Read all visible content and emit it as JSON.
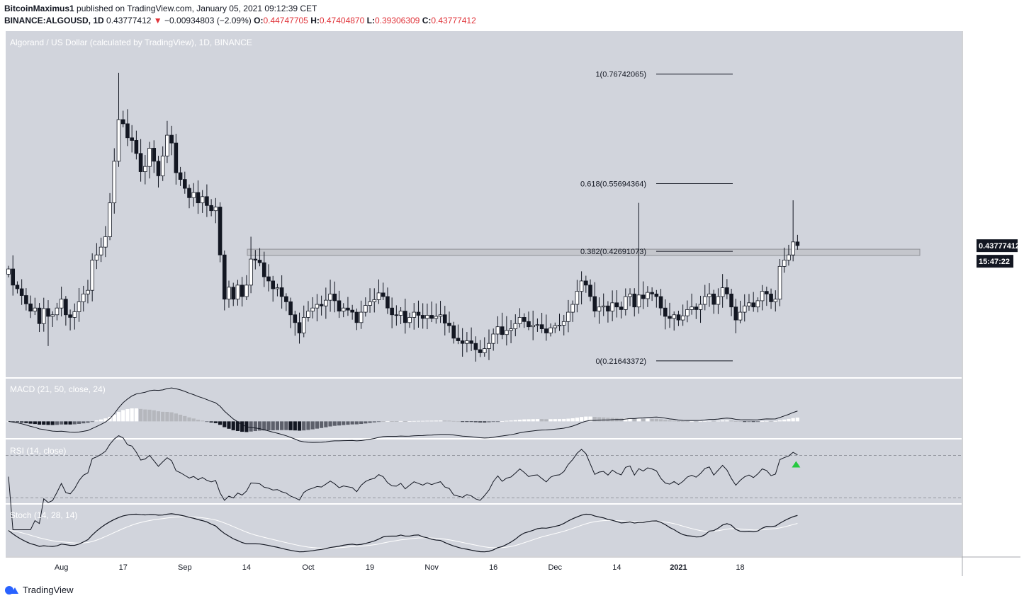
{
  "header": {
    "author": "BitcoinMaximus1",
    "published": "published on TradingView.com, January 05, 2021 09:12:39 CET",
    "symbol": "BINANCE:ALGOUSD, 1D",
    "last": "0.43777412",
    "arrow": "▼",
    "change": "−0.00934803 (−2.09%)",
    "o_label": "O:",
    "o": "0.44747705",
    "h_label": "H:",
    "h": "0.47404870",
    "l_label": "L:",
    "l": "0.39306309",
    "c_label": "C:",
    "c": "0.43777412"
  },
  "footer": {
    "brand": "TradingView",
    "icon": "tradingview-logo"
  },
  "colors": {
    "pane_bg": "#d1d4dc",
    "up_body": "#ffffff",
    "down_body": "#131722",
    "price_badge": "#131722",
    "rsi_arrow": "#26c940"
  },
  "chart_data": {
    "type": "candlestick",
    "title": "Algorand / US Dollar (calculated by TradingView), 1D, BINANCE",
    "currency": "USD",
    "y_ticks_main": [
      "0.80000000",
      "0.75000000",
      "0.70000000",
      "0.65000000",
      "0.60000000",
      "0.55000000",
      "0.50000000",
      "0.45000000",
      "0.40000000",
      "0.35000000",
      "0.30000000",
      "0.25000000",
      "0.20000000"
    ],
    "y_tick_values_main": [
      0.8,
      0.75,
      0.7,
      0.65,
      0.6,
      0.55,
      0.5,
      0.45,
      0.4,
      0.35,
      0.3,
      0.25,
      0.2
    ],
    "ylim_main": [
      0.185,
      0.85
    ],
    "x_ticks": [
      "Aug",
      "17",
      "Sep",
      "14",
      "Oct",
      "19",
      "Nov",
      "16",
      "Dec",
      "14",
      "2021",
      "18"
    ],
    "x_tick_index": [
      12,
      26,
      40,
      54,
      68,
      82,
      96,
      110,
      124,
      138,
      152,
      166
    ],
    "last_price_label": "0.43777412",
    "countdown_label": "15:47:22",
    "last_price": 0.43777412,
    "resistance_zone": [
      0.419,
      0.431
    ],
    "fib_levels": [
      {
        "label": "1(0.76742065)",
        "value": 0.76742065
      },
      {
        "label": "0.618(0.55694364)",
        "value": 0.55694364
      },
      {
        "label": "0.382(0.42691073)",
        "value": 0.42691073
      },
      {
        "label": "0(0.21643372)",
        "value": 0.21643372
      }
    ],
    "fib_x_range": [
      109,
      134
    ],
    "closes": [
      0.393,
      0.362,
      0.355,
      0.342,
      0.326,
      0.312,
      0.318,
      0.288,
      0.317,
      0.302,
      0.305,
      0.318,
      0.335,
      0.305,
      0.3,
      0.311,
      0.33,
      0.345,
      0.352,
      0.41,
      0.42,
      0.435,
      0.455,
      0.52,
      0.6,
      0.68,
      0.672,
      0.645,
      0.64,
      0.615,
      0.58,
      0.59,
      0.625,
      0.6,
      0.572,
      0.61,
      0.65,
      0.635,
      0.578,
      0.565,
      0.548,
      0.53,
      0.54,
      0.52,
      0.532,
      0.515,
      0.505,
      0.512,
      0.42,
      0.335,
      0.358,
      0.335,
      0.362,
      0.34,
      0.362,
      0.412,
      0.41,
      0.405,
      0.378,
      0.37,
      0.355,
      0.357,
      0.34,
      0.33,
      0.305,
      0.29,
      0.27,
      0.3,
      0.312,
      0.318,
      0.325,
      0.322,
      0.333,
      0.345,
      0.332,
      0.312,
      0.318,
      0.314,
      0.31,
      0.29,
      0.31,
      0.323,
      0.33,
      0.334,
      0.347,
      0.34,
      0.318,
      0.305,
      0.304,
      0.312,
      0.29,
      0.3,
      0.31,
      0.304,
      0.298,
      0.304,
      0.298,
      0.302,
      0.305,
      0.289,
      0.284,
      0.26,
      0.255,
      0.25,
      0.255,
      0.25,
      0.238,
      0.232,
      0.24,
      0.25,
      0.268,
      0.282,
      0.267,
      0.275,
      0.278,
      0.288,
      0.3,
      0.292,
      0.282,
      0.285,
      0.286,
      0.278,
      0.27,
      0.28,
      0.284,
      0.285,
      0.292,
      0.31,
      0.325,
      0.35,
      0.37,
      0.362,
      0.34,
      0.312,
      0.32,
      0.322,
      0.312,
      0.328,
      0.32,
      0.315,
      0.34,
      0.345,
      0.32,
      0.343,
      0.336,
      0.348,
      0.345,
      0.34,
      0.318,
      0.302,
      0.298,
      0.305,
      0.295,
      0.303,
      0.315,
      0.32,
      0.315,
      0.325,
      0.34,
      0.345,
      0.325,
      0.34,
      0.357,
      0.345,
      0.32,
      0.295,
      0.31,
      0.322,
      0.328,
      0.32,
      0.332,
      0.35,
      0.345,
      0.33,
      0.335,
      0.398,
      0.41,
      0.42,
      0.445,
      0.438
    ]
  },
  "macd": {
    "title": "MACD (21, 50, close, 24)",
    "y_ticks": [
      "0.10000000",
      "0.00000000"
    ],
    "y_tick_values": [
      0.1,
      0.0
    ],
    "ylim": [
      -0.045,
      0.115
    ]
  },
  "rsi": {
    "title": "RSI (14, close)",
    "y_ticks": [
      "75.00",
      "50.00"
    ],
    "y_tick_values": [
      75,
      50
    ],
    "ylim": [
      25,
      85
    ],
    "bands": [
      70,
      30
    ]
  },
  "stoch": {
    "title": "Stoch (14, 28, 14)",
    "y_ticks": [
      "80.00",
      "40.00"
    ],
    "y_tick_values": [
      80,
      40
    ],
    "ylim": [
      0,
      100
    ]
  }
}
